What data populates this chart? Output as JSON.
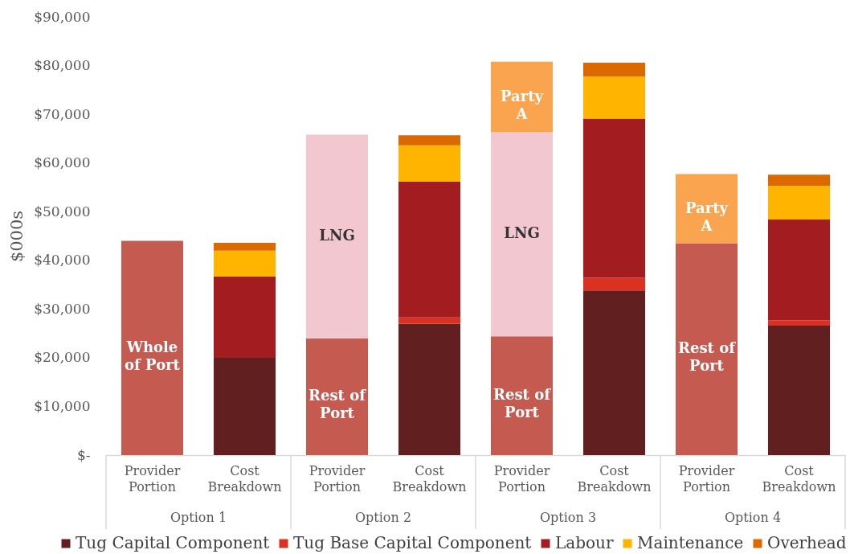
{
  "chart_data": {
    "type": "bar",
    "ylabel": "$000s",
    "categories": [
      "Provider Portion",
      "Cost Breakdown",
      "Provider Portion",
      "Cost Breakdown",
      "Provider Portion",
      "Cost Breakdown",
      "Provider Portion",
      "Cost Breakdown"
    ],
    "annotations": [
      "Option 1",
      "Option 2",
      "Option 3",
      "Option 4"
    ],
    "stacked": true,
    "ylim": [
      0,
      90000
    ],
    "yticks": [
      {
        "value": 0,
        "label": "$-"
      },
      {
        "value": 10000,
        "label": "$10,000"
      },
      {
        "value": 20000,
        "label": "$20,000"
      },
      {
        "value": 30000,
        "label": "$30,000"
      },
      {
        "value": 40000,
        "label": "$40,000"
      },
      {
        "value": 50000,
        "label": "$50,000"
      },
      {
        "value": 60000,
        "label": "$60,000"
      },
      {
        "value": 70000,
        "label": "$70,000"
      },
      {
        "value": 80000,
        "label": "$80,000"
      },
      {
        "value": 90000,
        "label": "$90,000"
      }
    ],
    "legend": "bottom",
    "series": [
      {
        "name": "Tug Capital Component",
        "color": "#611f1f",
        "values": [
          null,
          20000,
          null,
          27000,
          null,
          33800,
          null,
          26600
        ]
      },
      {
        "name": "Tug Base Capital Component",
        "color": "#dc3023",
        "values": [
          null,
          null,
          null,
          1300,
          null,
          2600,
          null,
          1100
        ]
      },
      {
        "name": "Labour",
        "color": "#a31d20",
        "values": [
          null,
          16700,
          null,
          27900,
          null,
          32700,
          null,
          20700
        ]
      },
      {
        "name": "Maintenance",
        "color": "#ffb400",
        "values": [
          null,
          5300,
          null,
          7400,
          null,
          8700,
          null,
          6900
        ]
      },
      {
        "name": "Overhead",
        "color": "#dc6900",
        "values": [
          null,
          1600,
          null,
          2100,
          null,
          2800,
          null,
          2300
        ]
      },
      {
        "color": "#c55a51",
        "values": [
          44000,
          null,
          24000,
          null,
          24400,
          null,
          43500,
          null
        ],
        "value_labels": [
          "Whole of Port",
          null,
          "Rest of Port",
          null,
          "Rest of Port",
          null,
          "Rest of Port",
          null
        ]
      },
      {
        "color": "#f2c7cf",
        "values": [
          null,
          null,
          41800,
          null,
          41900,
          null,
          null,
          null
        ],
        "value_labels": [
          null,
          null,
          "LNG",
          null,
          "LNG",
          null,
          null,
          null
        ]
      },
      {
        "color": "#fba450",
        "values": [
          null,
          null,
          null,
          null,
          14500,
          null,
          14200,
          null
        ],
        "value_labels": [
          null,
          null,
          null,
          null,
          "Party A",
          null,
          "Party A",
          null
        ]
      }
    ]
  }
}
